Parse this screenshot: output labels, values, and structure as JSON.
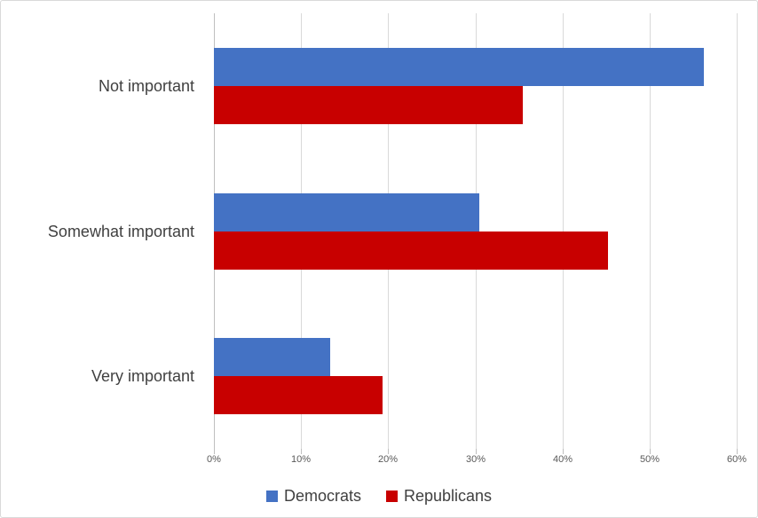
{
  "chart_data": {
    "type": "bar",
    "orientation": "horizontal",
    "title": "",
    "categories": [
      "Not important",
      "Somewhat important",
      "Very important"
    ],
    "series": [
      {
        "name": "Democrats",
        "color": "#4472C4",
        "values": [
          56.2,
          30.5,
          13.3
        ]
      },
      {
        "name": "Republicans",
        "color": "#C80000",
        "values": [
          35.5,
          45.2,
          19.4
        ]
      }
    ],
    "x_axis": {
      "min": 0,
      "max": 60,
      "unit": "%",
      "tick_labels": [
        "0%",
        "10%",
        "20%",
        "30%",
        "40%",
        "50%",
        "60%"
      ]
    },
    "grid": true,
    "legend_position": "bottom",
    "colors": {
      "gridline": "#d9d9d9",
      "axis_line": "#bfbfbf",
      "tick_text": "#595959",
      "label_text": "#404040",
      "background": "#ffffff",
      "border": "#d9d9d9"
    }
  }
}
